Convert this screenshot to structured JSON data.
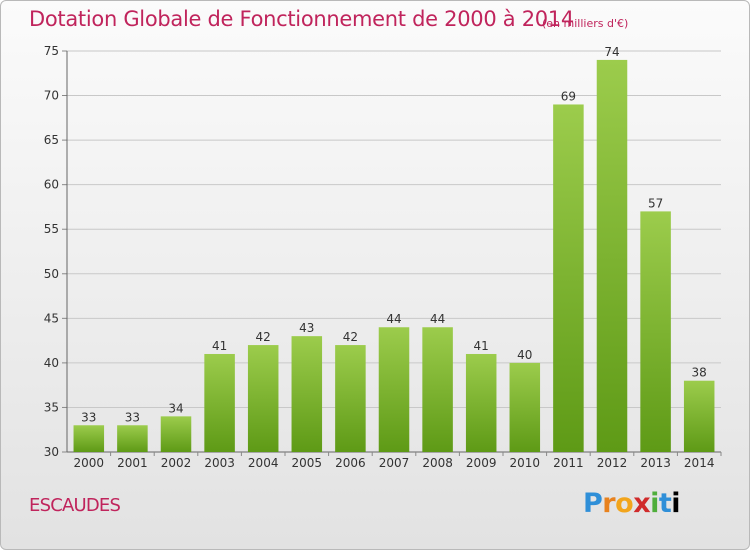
{
  "header": {
    "title": "Dotation Globale de Fonctionnement de 2000 à 2014",
    "unit": "(en milliers d'€)"
  },
  "footer": {
    "commune": "ESCAUDES",
    "logo": "Proxiti"
  },
  "colors": {
    "title": "#c0245c",
    "bar_top": "#9ccc4c",
    "bar_bottom": "#5e9a16",
    "grid": "#c8c8c8"
  },
  "chart_data": {
    "type": "bar",
    "title": "Dotation Globale de Fonctionnement de 2000 à 2014",
    "xlabel": "",
    "ylabel": "",
    "categories": [
      "2000",
      "2001",
      "2002",
      "2003",
      "2004",
      "2005",
      "2006",
      "2007",
      "2008",
      "2009",
      "2010",
      "2011",
      "2012",
      "2013",
      "2014"
    ],
    "values": [
      33,
      33,
      34,
      41,
      42,
      43,
      42,
      44,
      44,
      41,
      40,
      69,
      74,
      57,
      38
    ],
    "ylim": [
      30,
      75
    ],
    "yticks": [
      30,
      35,
      40,
      45,
      50,
      55,
      60,
      65,
      70,
      75
    ],
    "grid": true,
    "legend": "none"
  }
}
